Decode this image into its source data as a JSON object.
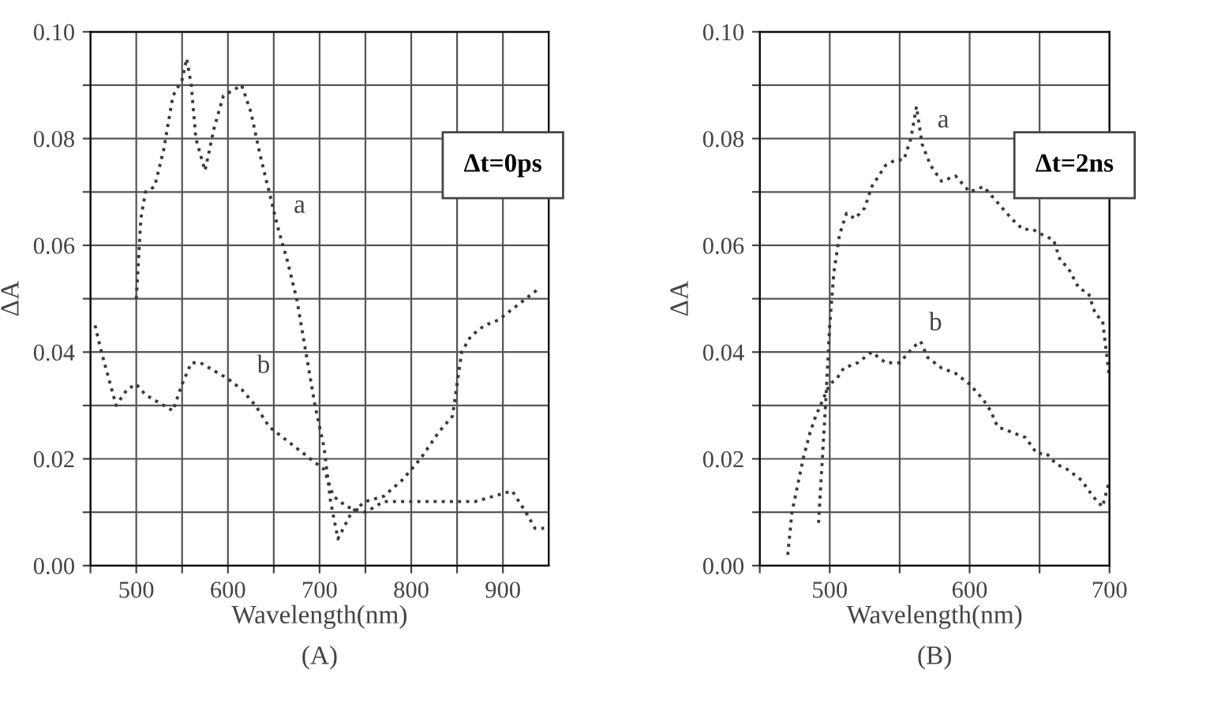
{
  "chart_data": [
    {
      "type": "line",
      "xlabel": "Wavelength(nm)",
      "ylabel": "ΔA",
      "xlim": [
        450,
        950
      ],
      "ylim": [
        0,
        0.1
      ],
      "xticks": [
        {
          "value": 450,
          "label": null
        },
        500,
        {
          "value": 550,
          "label": null
        },
        600,
        {
          "value": 650,
          "label": null
        },
        700,
        {
          "value": 750,
          "label": null
        },
        800,
        {
          "value": 850,
          "label": null
        },
        900
      ],
      "yticks": [
        {
          "value": 0,
          "label": "0.00"
        },
        {
          "value": 0.01,
          "label": null
        },
        {
          "value": 0.02,
          "label": "0.02"
        },
        {
          "value": 0.03,
          "label": null
        },
        {
          "value": 0.04,
          "label": "0.04"
        },
        {
          "value": 0.05,
          "label": null
        },
        {
          "value": 0.06,
          "label": "0.06"
        },
        {
          "value": 0.07,
          "label": null
        },
        {
          "value": 0.08,
          "label": "0.08"
        },
        {
          "value": 0.09,
          "label": null
        },
        {
          "value": 0.1,
          "label": "0.10"
        }
      ],
      "grid": true,
      "line_style": "dotted",
      "series": [
        {
          "name": "a",
          "color": "#3a3a3a",
          "x": [
            500,
            505,
            510,
            520,
            530,
            540,
            550,
            555,
            560,
            565,
            575,
            585,
            595,
            605,
            615,
            625,
            635,
            645,
            655,
            665,
            675,
            685,
            695,
            705,
            712,
            720,
            735,
            750,
            770,
            790,
            810,
            830,
            845,
            855,
            865,
            880,
            895,
            910,
            925,
            940
          ],
          "values": [
            0.05,
            0.065,
            0.07,
            0.071,
            0.078,
            0.088,
            0.091,
            0.095,
            0.09,
            0.08,
            0.074,
            0.082,
            0.088,
            0.089,
            0.09,
            0.085,
            0.077,
            0.07,
            0.063,
            0.057,
            0.05,
            0.04,
            0.03,
            0.022,
            0.012,
            0.005,
            0.01,
            0.012,
            0.013,
            0.016,
            0.02,
            0.025,
            0.028,
            0.04,
            0.043,
            0.045,
            0.046,
            0.048,
            0.05,
            0.052
          ]
        },
        {
          "name": "b",
          "color": "#3a3a3a",
          "x": [
            455,
            462,
            470,
            478,
            490,
            500,
            510,
            520,
            530,
            540,
            550,
            560,
            570,
            580,
            590,
            600,
            615,
            630,
            645,
            660,
            675,
            690,
            705,
            715,
            730,
            750,
            770,
            790,
            810,
            830,
            850,
            870,
            890,
            910,
            925,
            935,
            945
          ],
          "values": [
            0.045,
            0.04,
            0.035,
            0.03,
            0.033,
            0.034,
            0.032,
            0.031,
            0.03,
            0.029,
            0.034,
            0.038,
            0.038,
            0.037,
            0.036,
            0.035,
            0.033,
            0.03,
            0.026,
            0.024,
            0.022,
            0.02,
            0.018,
            0.013,
            0.011,
            0.01,
            0.012,
            0.012,
            0.012,
            0.012,
            0.012,
            0.012,
            0.013,
            0.014,
            0.01,
            0.007,
            0.007
          ]
        }
      ],
      "annotations": [
        "Δt=0ps",
        "(A)"
      ]
    },
    {
      "type": "line",
      "xlabel": "Wavelength(nm)",
      "ylabel": "ΔA",
      "xlim": [
        450,
        700
      ],
      "ylim": [
        0,
        0.1
      ],
      "xticks": [
        {
          "value": 450,
          "label": null
        },
        500,
        {
          "value": 550,
          "label": null
        },
        600,
        {
          "value": 650,
          "label": null
        },
        700
      ],
      "yticks": [
        {
          "value": 0,
          "label": "0.00"
        },
        {
          "value": 0.01,
          "label": null
        },
        {
          "value": 0.02,
          "label": "0.02"
        },
        {
          "value": 0.03,
          "label": null
        },
        {
          "value": 0.04,
          "label": "0.04"
        },
        {
          "value": 0.05,
          "label": null
        },
        {
          "value": 0.06,
          "label": "0.06"
        },
        {
          "value": 0.07,
          "label": null
        },
        {
          "value": 0.08,
          "label": "0.08"
        },
        {
          "value": 0.09,
          "label": null
        },
        {
          "value": 0.1,
          "label": "0.10"
        }
      ],
      "grid": true,
      "line_style": "dotted",
      "series": [
        {
          "name": "a",
          "color": "#3a3a3a",
          "x": [
            492,
            497,
            500,
            503,
            507,
            512,
            518,
            525,
            530,
            535,
            540,
            547,
            553,
            558,
            562,
            566,
            572,
            580,
            590,
            600,
            610,
            620,
            630,
            638,
            645,
            652,
            660,
            665,
            670,
            678,
            685,
            690,
            695,
            700
          ],
          "values": [
            0.008,
            0.03,
            0.045,
            0.055,
            0.062,
            0.066,
            0.065,
            0.067,
            0.071,
            0.073,
            0.075,
            0.076,
            0.076,
            0.08,
            0.086,
            0.079,
            0.075,
            0.072,
            0.073,
            0.07,
            0.071,
            0.068,
            0.065,
            0.063,
            0.063,
            0.062,
            0.061,
            0.057,
            0.056,
            0.052,
            0.051,
            0.047,
            0.046,
            0.035
          ]
        },
        {
          "name": "b",
          "color": "#3a3a3a",
          "x": [
            470,
            473,
            477,
            481,
            486,
            490,
            495,
            500,
            505,
            510,
            520,
            530,
            540,
            550,
            560,
            565,
            570,
            580,
            590,
            600,
            610,
            615,
            620,
            630,
            640,
            648,
            655,
            662,
            670,
            680,
            688,
            695,
            700
          ],
          "values": [
            0.002,
            0.01,
            0.015,
            0.02,
            0.025,
            0.028,
            0.031,
            0.034,
            0.035,
            0.037,
            0.038,
            0.04,
            0.038,
            0.038,
            0.041,
            0.042,
            0.039,
            0.037,
            0.036,
            0.034,
            0.031,
            0.029,
            0.026,
            0.025,
            0.024,
            0.021,
            0.021,
            0.019,
            0.018,
            0.016,
            0.013,
            0.011,
            0.016
          ]
        }
      ],
      "annotations": [
        "Δt=2ns",
        "(B)"
      ]
    }
  ]
}
